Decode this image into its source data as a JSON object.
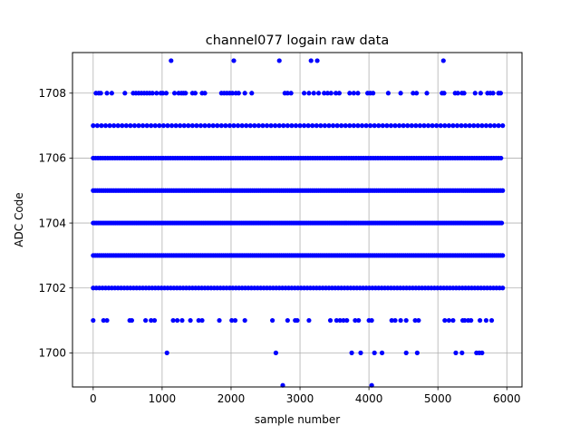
{
  "chart_data": {
    "type": "scatter",
    "title": "channel077 logain raw data",
    "xlabel": "sample number",
    "ylabel": "ADC Code",
    "xlim": [
      -300,
      6220
    ],
    "ylim": [
      1698.95,
      1709.25
    ],
    "xticks": [
      0,
      1000,
      2000,
      3000,
      4000,
      5000,
      6000
    ],
    "yticks": [
      1700,
      1702,
      1704,
      1706,
      1708
    ],
    "grid": true,
    "marker_color": "#0000ff",
    "series": [
      {
        "values_dense": [
          {
            "y": 1703,
            "x_range": [
              0,
              5940
            ],
            "step": 30
          },
          {
            "y": 1704,
            "x_range": [
              0,
              5940
            ],
            "step": 25
          },
          {
            "y": 1705,
            "x_range": [
              0,
              5940
            ],
            "step": 30
          },
          {
            "y": 1706,
            "x_range": [
              0,
              5940
            ],
            "step": 35
          },
          {
            "y": 1702,
            "x_range": [
              0,
              5940
            ],
            "step": 45
          },
          {
            "y": 1707,
            "x_range": [
              0,
              5940
            ],
            "step": 60
          }
        ],
        "points_sparse": [
          {
            "y": 1709,
            "x": [
              1130,
              2040,
              2700,
              3160,
              3250,
              5080
            ]
          },
          {
            "y": 1708,
            "x": [
              40,
              80,
              110,
              200,
              270,
              460,
              580,
              620,
              660,
              700,
              740,
              780,
              820,
              860,
              920,
              980,
              1010,
              1060,
              1180,
              1240,
              1280,
              1310,
              1340,
              1440,
              1480,
              1580,
              1620,
              1860,
              1900,
              1940,
              1980,
              2020,
              2070,
              2110,
              2200,
              2300,
              2780,
              2820,
              2870,
              3060,
              3130,
              3200,
              3270,
              3350,
              3400,
              3450,
              3520,
              3570,
              3720,
              3780,
              3840,
              3980,
              4020,
              4060,
              4280,
              4460,
              4640,
              4690,
              4840,
              5060,
              5090,
              5250,
              5290,
              5350,
              5380,
              5540,
              5620,
              5720,
              5760,
              5800,
              5880,
              5910
            ]
          },
          {
            "y": 1701,
            "x": [
              0,
              150,
              200,
              530,
              560,
              760,
              840,
              890,
              1160,
              1220,
              1290,
              1410,
              1530,
              1580,
              1830,
              2010,
              2060,
              2200,
              2600,
              2820,
              2930,
              2960,
              3130,
              3440,
              3530,
              3580,
              3630,
              3680,
              3800,
              3850,
              4000,
              4040,
              4330,
              4380,
              4460,
              4540,
              4670,
              4720,
              5100,
              5160,
              5220,
              5360,
              5390,
              5440,
              5480,
              5610,
              5700,
              5780
            ]
          },
          {
            "y": 1700,
            "x": [
              1070,
              2650,
              3750,
              3880,
              4080,
              4190,
              4540,
              4700,
              5260,
              5350,
              5560,
              5600,
              5640
            ]
          },
          {
            "y": 1699,
            "x": [
              2750,
              4040
            ]
          }
        ]
      }
    ]
  }
}
